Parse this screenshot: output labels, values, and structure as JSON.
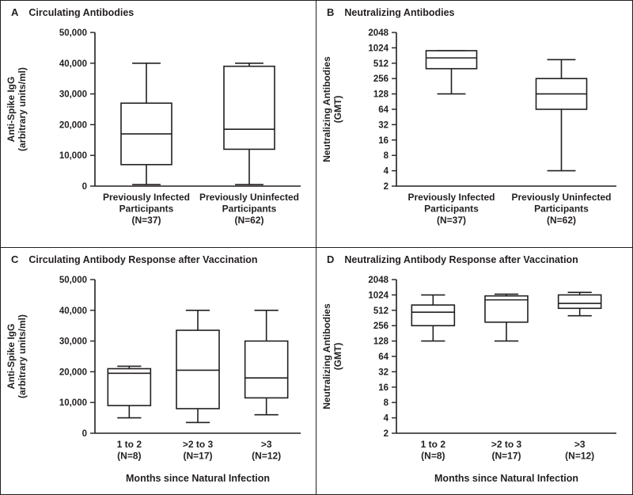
{
  "colors": {
    "line": "#231f20",
    "text": "#231f20",
    "background": "#ffffff",
    "box_fill": "#ffffff"
  },
  "chart_data": [
    {
      "type": "boxplot",
      "letter": "A",
      "title": "Circulating Antibodies",
      "ylabel_lines": [
        "Anti-Spike IgG",
        "(arbitrary units/ml)"
      ],
      "scale": "linear",
      "ylim": [
        0,
        50000
      ],
      "yticks": [
        0,
        10000,
        20000,
        30000,
        40000,
        50000
      ],
      "ytick_labels": [
        "0",
        "10,000",
        "20,000",
        "30,000",
        "40,000",
        "50,000"
      ],
      "xlabel": "",
      "categories": [
        [
          "Previously Infected",
          "Participants",
          "(N=37)"
        ],
        [
          "Previously Uninfected",
          "Participants",
          "(N=62)"
        ]
      ],
      "boxes": [
        {
          "whisker_low": 500,
          "q1": 7000,
          "median": 17000,
          "q3": 27000,
          "whisker_high": 40000
        },
        {
          "whisker_low": 500,
          "q1": 12000,
          "median": 18500,
          "q3": 39000,
          "whisker_high": 40000
        }
      ]
    },
    {
      "type": "boxplot",
      "letter": "B",
      "title": "Neutralizing Antibodies",
      "ylabel_lines": [
        "Neutralizing Antibodies",
        "(GMT)"
      ],
      "scale": "log2",
      "ylim": [
        2,
        2048
      ],
      "yticks": [
        2,
        4,
        8,
        16,
        32,
        64,
        128,
        256,
        512,
        1024,
        2048
      ],
      "ytick_labels": [
        "2",
        "4",
        "8",
        "16",
        "32",
        "64",
        "128",
        "256",
        "512",
        "1024",
        "2048"
      ],
      "xlabel": "",
      "categories": [
        [
          "Previously Infected",
          "Participants",
          "(N=37)"
        ],
        [
          "Previously Uninfected",
          "Participants",
          "(N=62)"
        ]
      ],
      "boxes": [
        {
          "whisker_low": 128,
          "q1": 400,
          "median": 650,
          "q3": 900,
          "whisker_high": 900
        },
        {
          "whisker_low": 4,
          "q1": 64,
          "median": 128,
          "q3": 256,
          "whisker_high": 600
        }
      ]
    },
    {
      "type": "boxplot",
      "letter": "C",
      "title": "Circulating Antibody Response after Vaccination",
      "ylabel_lines": [
        "Anti-Spike IgG",
        "(arbitrary units/ml)"
      ],
      "scale": "linear",
      "ylim": [
        0,
        50000
      ],
      "yticks": [
        0,
        10000,
        20000,
        30000,
        40000,
        50000
      ],
      "ytick_labels": [
        "0",
        "10,000",
        "20,000",
        "30,000",
        "40,000",
        "50,000"
      ],
      "xlabel": "Months since Natural Infection",
      "categories": [
        [
          "1 to 2",
          "(N=8)"
        ],
        [
          ">2 to 3",
          "(N=17)"
        ],
        [
          ">3",
          "(N=12)"
        ]
      ],
      "boxes": [
        {
          "whisker_low": 5000,
          "q1": 9000,
          "median": 19500,
          "q3": 21000,
          "whisker_high": 21800
        },
        {
          "whisker_low": 3500,
          "q1": 8000,
          "median": 20500,
          "q3": 33500,
          "whisker_high": 40000
        },
        {
          "whisker_low": 6000,
          "q1": 11500,
          "median": 18000,
          "q3": 30000,
          "whisker_high": 40000
        }
      ]
    },
    {
      "type": "boxplot",
      "letter": "D",
      "title": "Neutralizing Antibody Response after Vaccination",
      "ylabel_lines": [
        "Neutralizing Antibodies",
        "(GMT)"
      ],
      "scale": "log2",
      "ylim": [
        2,
        2048
      ],
      "yticks": [
        2,
        4,
        8,
        16,
        32,
        64,
        128,
        256,
        512,
        1024,
        2048
      ],
      "ytick_labels": [
        "2",
        "4",
        "8",
        "16",
        "32",
        "64",
        "128",
        "256",
        "512",
        "1024",
        "2048"
      ],
      "xlabel": "Months since Natural Infection",
      "categories": [
        [
          "1 to 2",
          "(N=8)"
        ],
        [
          ">2 to 3",
          "(N=17)"
        ],
        [
          ">3",
          "(N=12)"
        ]
      ],
      "boxes": [
        {
          "whisker_low": 128,
          "q1": 256,
          "median": 470,
          "q3": 650,
          "whisker_high": 1024
        },
        {
          "whisker_low": 128,
          "q1": 300,
          "median": 820,
          "q3": 980,
          "whisker_high": 1060
        },
        {
          "whisker_low": 400,
          "q1": 560,
          "median": 700,
          "q3": 1024,
          "whisker_high": 1150
        }
      ]
    }
  ]
}
